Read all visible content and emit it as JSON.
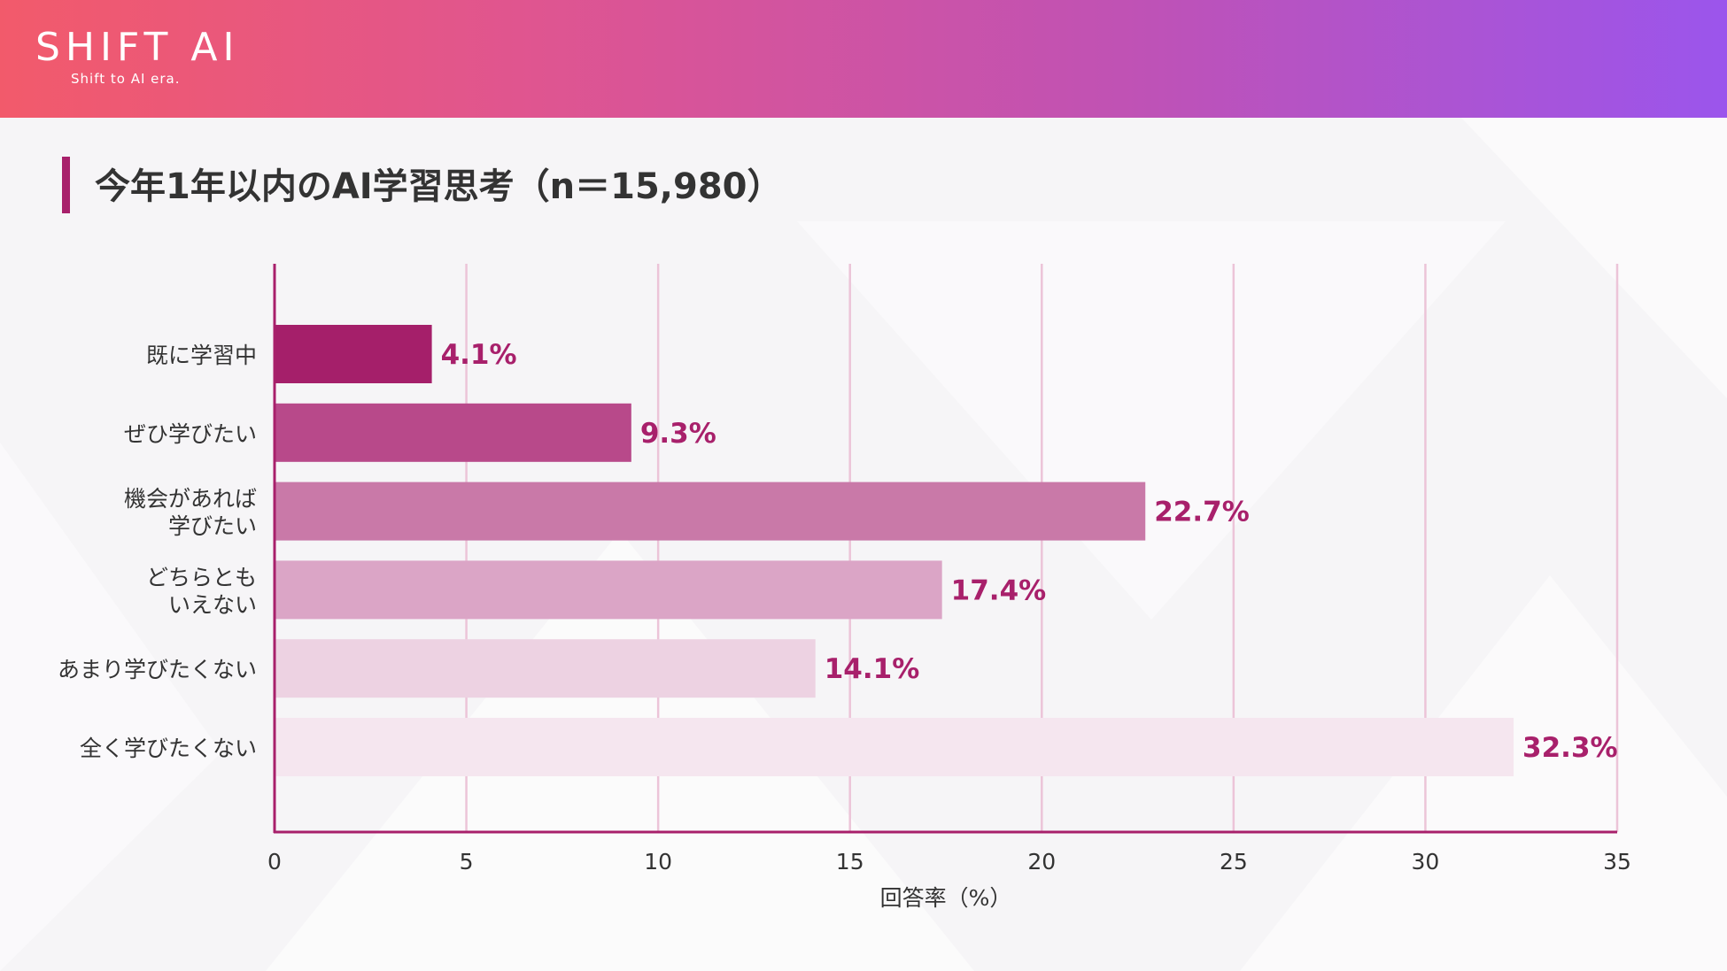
{
  "header": {
    "logo": "SHIFT AI",
    "tagline": "Shift to AI era."
  },
  "page_title": "今年1年以内のAI学習思考（n＝15,980）",
  "colors": {
    "accent": "#a8206b",
    "label_color": "#a8206b",
    "bars": [
      "#a51f6a",
      "#b8498a",
      "#c979a8",
      "#dba5c6",
      "#edd2e2",
      "#f5e6ef"
    ]
  },
  "chart_data": {
    "type": "bar",
    "orientation": "horizontal",
    "title": "今年1年以内のAI学習思考（n＝15,980）",
    "categories": [
      [
        "既に学習中"
      ],
      [
        "ぜひ学びたい"
      ],
      [
        "機会があれば",
        "学びたい"
      ],
      [
        "どちらとも",
        "いえない"
      ],
      [
        "あまり学びたくない"
      ],
      [
        "全く学びたくない"
      ]
    ],
    "values": [
      4.1,
      9.3,
      22.7,
      17.4,
      14.1,
      32.3
    ],
    "value_labels": [
      "4.1%",
      "9.3%",
      "22.7%",
      "17.4%",
      "14.1%",
      "32.3%"
    ],
    "xlabel": "回答率（%）",
    "ylabel": "",
    "xlim": [
      0,
      35
    ],
    "xticks": [
      0,
      5,
      10,
      15,
      20,
      25,
      30,
      35
    ],
    "grid": true
  }
}
